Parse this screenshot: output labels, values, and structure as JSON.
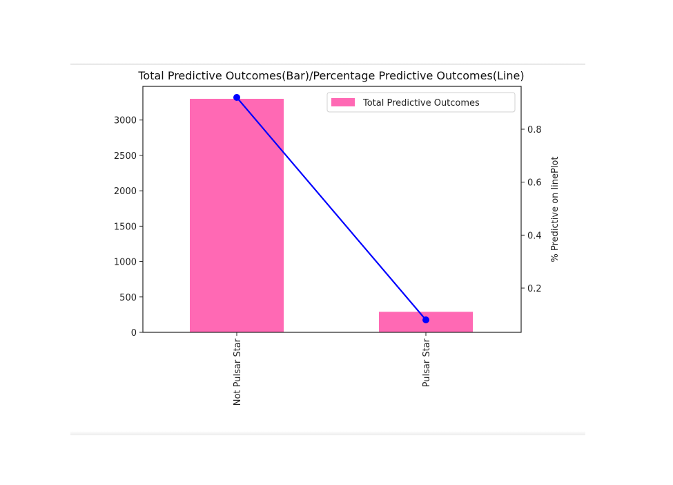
{
  "chart_data": {
    "type": "bar",
    "title": "Total Predictive Outcomes(Bar)/Percentage Predictive Outcomes(Line)",
    "categories": [
      "Not Pulsar Star",
      "Pulsar Star"
    ],
    "series": [
      {
        "name": "Total Predictive Outcomes",
        "type": "bar",
        "axis": "left",
        "color": "#ff69b4",
        "values": [
          3300,
          290
        ]
      },
      {
        "type": "line",
        "axis": "right",
        "color": "#0000ff",
        "marker": "circle",
        "values": [
          0.92,
          0.08
        ]
      }
    ],
    "y_left": {
      "ylim": [
        0,
        3300
      ],
      "ticks": [
        "0",
        "500",
        "1000",
        "1500",
        "2000",
        "2500",
        "3000"
      ],
      "label": ""
    },
    "y_right": {
      "ylim": [
        0.04,
        0.94
      ],
      "ticks": [
        "0.2",
        "0.4",
        "0.6",
        "0.8"
      ],
      "label": "% Predictive on linePlot"
    },
    "xlabel": "",
    "legend": {
      "entries": [
        "Total Predictive Outcomes"
      ],
      "placement": "top-right"
    },
    "grid": false
  }
}
